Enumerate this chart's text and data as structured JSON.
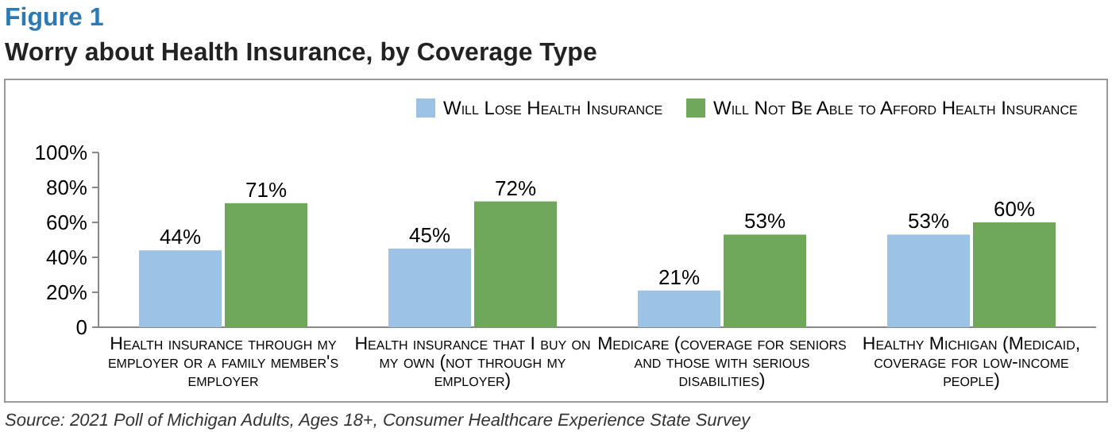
{
  "chart_data": {
    "type": "bar",
    "subtitle": "Figure 1",
    "title": "Worry about Health Insurance, by Coverage Type",
    "categories": [
      "Health insurance through my employer or a family member's employer",
      "Health insurance that I buy on my own (not through my employer)",
      "Medicare (coverage for seniors and those with serious disabilities)",
      "Healthy Michigan (Medicaid, coverage for low-income people)"
    ],
    "series": [
      {
        "name": "Will Lose Health Insurance",
        "color": "#9cc3e5",
        "values": [
          44,
          45,
          21,
          53
        ],
        "value_labels": [
          "44%",
          "45%",
          "21%",
          "53%"
        ]
      },
      {
        "name": "Will Not Be Able to Afford Health Insurance",
        "color": "#6fa85a",
        "values": [
          71,
          72,
          53,
          60
        ],
        "value_labels": [
          "71%",
          "72%",
          "53%",
          "60%"
        ]
      }
    ],
    "ylim": [
      0,
      100
    ],
    "yticks": [
      {
        "value": 0,
        "label": "0"
      },
      {
        "value": 20,
        "label": "20%"
      },
      {
        "value": 40,
        "label": "40%"
      },
      {
        "value": 60,
        "label": "60%"
      },
      {
        "value": 80,
        "label": "80%"
      },
      {
        "value": 100,
        "label": "100%"
      }
    ],
    "legend": "top right",
    "grid": false,
    "annotations": [
      "Source: 2021 Poll of Michigan Adults, Ages 18+, Consumer Healthcare Experience State Survey"
    ]
  }
}
